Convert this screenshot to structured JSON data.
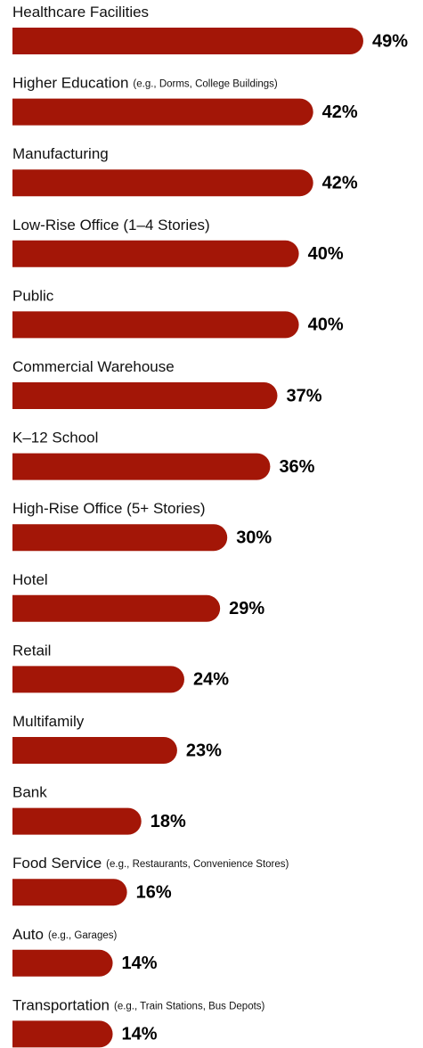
{
  "chart_data": {
    "type": "bar",
    "orientation": "horizontal",
    "color": "#a31607",
    "categories": [
      "Healthcare Facilities",
      "Higher Education",
      "Manufacturing",
      "Low-Rise Office (1–4 Stories)",
      "Public",
      "Commercial Warehouse",
      "K–12 School",
      "High-Rise Office (5+ Stories)",
      "Hotel",
      "Retail",
      "Multifamily",
      "Bank",
      "Food Service",
      "Auto",
      "Transportation"
    ],
    "category_notes": [
      null,
      "(e.g., Dorms, College Buildings)",
      null,
      null,
      null,
      null,
      null,
      null,
      null,
      null,
      null,
      null,
      "(e.g., Restaurants, Convenience Stores)",
      "(e.g., Garages)",
      "(e.g., Train Stations, Bus Depots)"
    ],
    "values": [
      49,
      42,
      42,
      40,
      40,
      37,
      36,
      30,
      29,
      24,
      23,
      18,
      16,
      14,
      14
    ],
    "value_labels": [
      "49%",
      "42%",
      "42%",
      "40%",
      "40%",
      "37%",
      "36%",
      "30%",
      "29%",
      "24%",
      "23%",
      "18%",
      "16%",
      "14%",
      "14%"
    ]
  }
}
